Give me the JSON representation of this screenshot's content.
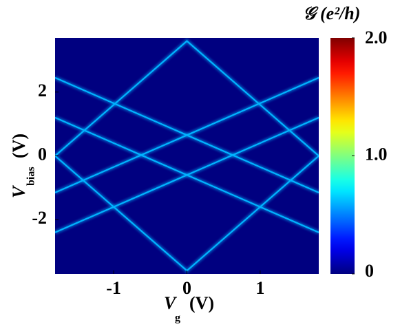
{
  "chart_data": {
    "type": "heatmap",
    "xlabel": "V",
    "xlabel_subscript": "g",
    "xlabel_unit": "(V)",
    "ylabel": "V",
    "ylabel_subscript": "bias",
    "ylabel_unit": "(V)",
    "colorbar_label": "𝒢 (e²/h)",
    "xlim": [
      -1.8,
      1.8
    ],
    "xticks": [
      -1,
      0,
      1
    ],
    "ylim": [
      -3.7,
      3.7
    ],
    "yticks": [
      -2,
      0,
      2
    ],
    "clim": [
      0,
      2
    ],
    "cticks": [
      0,
      {
        "value": 1,
        "label": "1.0"
      },
      {
        "value": 2,
        "label": "2.0"
      }
    ],
    "colormap": "jet",
    "series": [
      {
        "x": [
          -1.8,
          0,
          1.8,
          0,
          -1.8
        ],
        "y": [
          0,
          3.6,
          0,
          -3.6,
          0
        ],
        "value": 0.6
      },
      {
        "x": [
          -1.8,
          1.8
        ],
        "y": [
          2.45,
          -1.15
        ],
        "value": 0.6
      },
      {
        "x": [
          -1.8,
          1.8
        ],
        "y": [
          -1.15,
          2.45
        ],
        "value": 0.6
      },
      {
        "x": [
          -1.8,
          1.8
        ],
        "y": [
          1.2,
          -2.4
        ],
        "value": 0.6
      },
      {
        "x": [
          -1.8,
          1.8
        ],
        "y": [
          -2.4,
          1.2
        ],
        "value": 0.6
      }
    ]
  }
}
